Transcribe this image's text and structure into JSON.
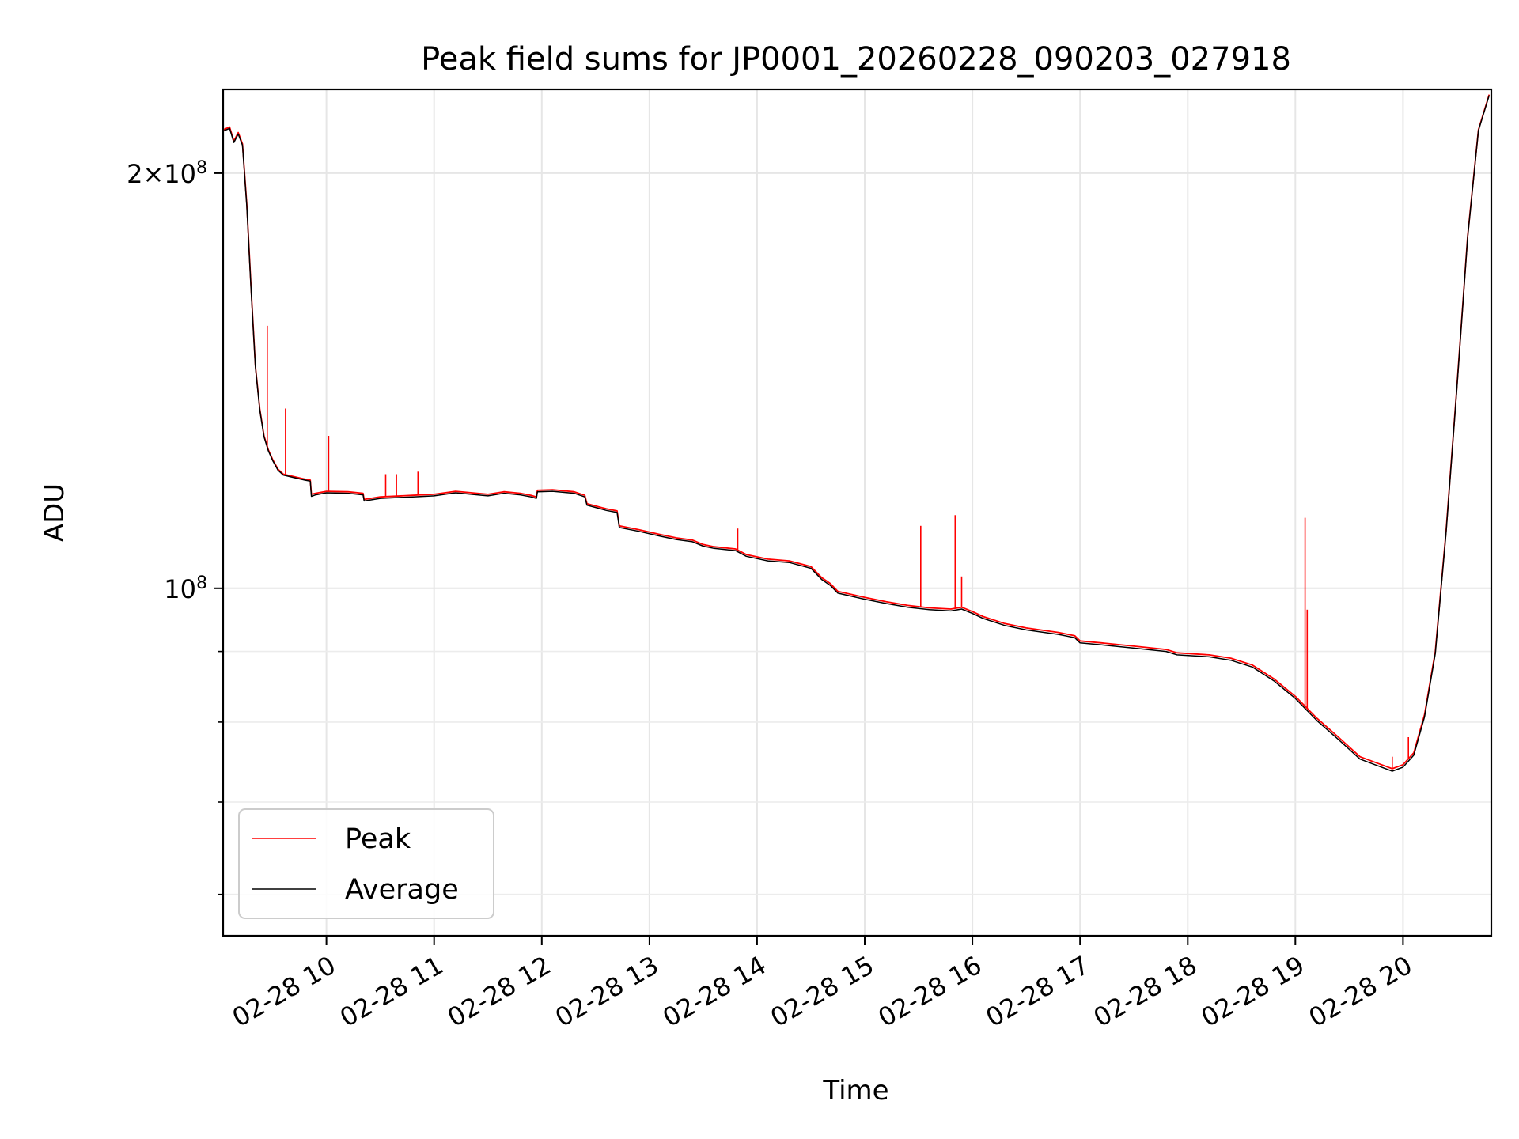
{
  "chart_data": {
    "type": "line",
    "title": "Peak field sums for JP0001_20260228_090203_027918",
    "xlabel": "Time",
    "ylabel": "ADU",
    "x_tick_labels": [
      "02-28 10",
      "02-28 11",
      "02-28 12",
      "02-28 13",
      "02-28 14",
      "02-28 15",
      "02-28 16",
      "02-28 17",
      "02-28 18",
      "02-28 19",
      "02-28 20"
    ],
    "x_tick_values": [
      10,
      11,
      12,
      13,
      14,
      15,
      16,
      17,
      18,
      19,
      20
    ],
    "y_tick_labels": [
      {
        "base": "2×10",
        "exp": "8",
        "value": 200000000
      },
      {
        "base": "10",
        "exp": "8",
        "value": 100000000
      }
    ],
    "y_minor_ticks": [
      60000000,
      70000000,
      80000000,
      90000000
    ],
    "xlim": [
      9.04,
      20.82
    ],
    "ylim": [
      56000000,
      230000000
    ],
    "yscale": "log",
    "x_unit": "hour of 02-28",
    "grid": true,
    "legend_position": "lower-left",
    "series": [
      {
        "name": "Peak",
        "color": "#ff0000",
        "x": [
          9.04,
          9.1,
          9.14,
          9.18,
          9.22,
          9.26,
          9.3,
          9.34,
          9.38,
          9.42,
          9.46,
          9.5,
          9.55,
          9.6,
          9.7,
          9.8,
          9.85,
          9.86,
          9.9,
          10.0,
          10.2,
          10.34,
          10.35,
          10.5,
          10.8,
          11.0,
          11.2,
          11.4,
          11.5,
          11.65,
          11.8,
          11.9,
          11.95,
          11.96,
          12.1,
          12.3,
          12.4,
          12.42,
          12.6,
          12.7,
          12.72,
          12.9,
          13.1,
          13.25,
          13.4,
          13.5,
          13.6,
          13.8,
          13.9,
          14.1,
          14.3,
          14.5,
          14.6,
          14.68,
          14.75,
          15.0,
          15.2,
          15.4,
          15.6,
          15.8,
          15.9,
          16.0,
          16.1,
          16.3,
          16.5,
          16.8,
          16.95,
          17.0,
          17.2,
          17.5,
          17.8,
          17.9,
          18.2,
          18.4,
          18.6,
          18.8,
          19.0,
          19.2,
          19.4,
          19.6,
          19.8,
          19.9,
          20.0,
          20.1,
          20.2,
          20.3,
          20.4,
          20.5,
          20.6,
          20.7,
          20.8
        ],
        "y": [
          215000000,
          216000000,
          211000000,
          214000000,
          210000000,
          190000000,
          165000000,
          145000000,
          135000000,
          129000000,
          126000000,
          124000000,
          122000000,
          121000000,
          120500000,
          120000000,
          119800000,
          117000000,
          117200000,
          117600000,
          117500000,
          117200000,
          116000000,
          116500000,
          116800000,
          117000000,
          117600000,
          117200000,
          117000000,
          117500000,
          117200000,
          116800000,
          116500000,
          117800000,
          117900000,
          117500000,
          116800000,
          115200000,
          114200000,
          113800000,
          111000000,
          110300000,
          109400000,
          108800000,
          108400000,
          107600000,
          107200000,
          106800000,
          105800000,
          105000000,
          104700000,
          103700000,
          101800000,
          100800000,
          99500000,
          98500000,
          97800000,
          97200000,
          96800000,
          96600000,
          96900000,
          96200000,
          95400000,
          94300000,
          93600000,
          92900000,
          92400000,
          91600000,
          91300000,
          90800000,
          90300000,
          89800000,
          89500000,
          89000000,
          88000000,
          86000000,
          83500000,
          80500000,
          78000000,
          75500000,
          74500000,
          74000000,
          74500000,
          76000000,
          81000000,
          90000000,
          110000000,
          140000000,
          180000000,
          215000000,
          228000000
        ],
        "spikes": [
          {
            "x": 9.45,
            "y": 155000000
          },
          {
            "x": 9.62,
            "y": 135000000
          },
          {
            "x": 10.02,
            "y": 129000000
          },
          {
            "x": 10.55,
            "y": 121000000
          },
          {
            "x": 10.65,
            "y": 121000000
          },
          {
            "x": 10.85,
            "y": 121500000
          },
          {
            "x": 13.82,
            "y": 110500000
          },
          {
            "x": 15.52,
            "y": 111000000
          },
          {
            "x": 15.84,
            "y": 113000000
          },
          {
            "x": 15.9,
            "y": 102000000
          },
          {
            "x": 19.09,
            "y": 112500000
          },
          {
            "x": 19.11,
            "y": 96500000
          },
          {
            "x": 19.9,
            "y": 75500000
          },
          {
            "x": 20.05,
            "y": 78000000
          }
        ]
      },
      {
        "name": "Average",
        "color": "#000000",
        "x": [
          9.04,
          9.1,
          9.14,
          9.18,
          9.22,
          9.26,
          9.3,
          9.34,
          9.38,
          9.42,
          9.46,
          9.5,
          9.55,
          9.6,
          9.7,
          9.8,
          9.85,
          9.86,
          9.9,
          10.0,
          10.2,
          10.34,
          10.35,
          10.5,
          10.8,
          11.0,
          11.2,
          11.4,
          11.5,
          11.65,
          11.8,
          11.9,
          11.95,
          11.96,
          12.1,
          12.3,
          12.4,
          12.42,
          12.6,
          12.7,
          12.72,
          12.9,
          13.1,
          13.25,
          13.4,
          13.5,
          13.6,
          13.8,
          13.9,
          14.1,
          14.3,
          14.5,
          14.6,
          14.68,
          14.75,
          15.0,
          15.2,
          15.4,
          15.6,
          15.8,
          15.9,
          16.0,
          16.1,
          16.3,
          16.5,
          16.8,
          16.95,
          17.0,
          17.2,
          17.5,
          17.8,
          17.9,
          18.2,
          18.4,
          18.6,
          18.8,
          19.0,
          19.2,
          19.4,
          19.6,
          19.8,
          19.9,
          20.0,
          20.1,
          20.2,
          20.3,
          20.4,
          20.5,
          20.6,
          20.7,
          20.8
        ],
        "y": [
          214500000,
          215500000,
          210500000,
          213500000,
          209500000,
          189500000,
          164500000,
          144800000,
          134800000,
          128800000,
          125800000,
          123800000,
          121800000,
          120800000,
          120300000,
          119800000,
          119600000,
          116600000,
          116900000,
          117300000,
          117200000,
          116900000,
          115700000,
          116200000,
          116500000,
          116700000,
          117300000,
          116900000,
          116700000,
          117200000,
          116900000,
          116500000,
          116200000,
          117500000,
          117600000,
          117200000,
          116500000,
          114900000,
          113900000,
          113500000,
          110700000,
          110000000,
          109100000,
          108500000,
          108100000,
          107300000,
          106900000,
          106500000,
          105500000,
          104700000,
          104400000,
          103400000,
          101500000,
          100500000,
          99200000,
          98200000,
          97500000,
          96900000,
          96500000,
          96300000,
          96600000,
          95900000,
          95100000,
          94000000,
          93300000,
          92600000,
          92100000,
          91300000,
          91000000,
          90500000,
          90000000,
          89500000,
          89200000,
          88700000,
          87700000,
          85700000,
          83200000,
          80200000,
          77700000,
          75200000,
          74200000,
          73700000,
          74200000,
          75700000,
          80700000,
          89700000,
          109700000,
          139700000,
          179700000,
          214700000,
          227700000
        ]
      }
    ]
  }
}
